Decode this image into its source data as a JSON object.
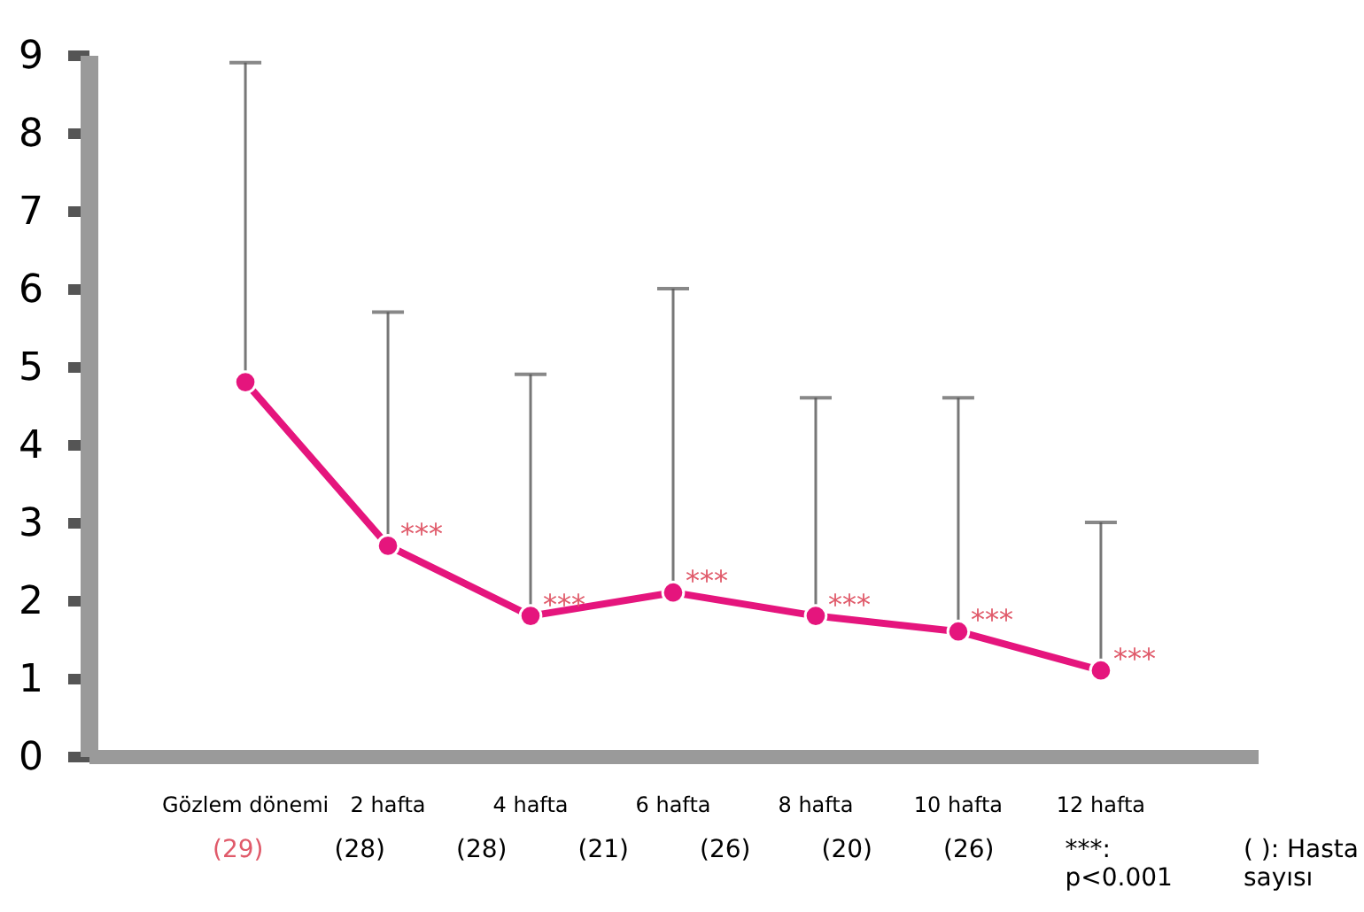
{
  "chart_data": {
    "type": "line",
    "categories": [
      "Gözlem dönemi",
      "2 hafta",
      "4 hafta",
      "6 hafta",
      "8 hafta",
      "10 hafta",
      "12 hafta"
    ],
    "series": [
      {
        "color": "#e5157d",
        "values": [
          4.8,
          2.7,
          1.8,
          2.1,
          1.8,
          1.6,
          1.1
        ],
        "errors": [
          [
            4.8,
            8.9
          ],
          [
            2.7,
            5.7
          ],
          [
            1.8,
            4.9
          ],
          [
            2.1,
            6.0
          ],
          [
            1.8,
            4.6
          ],
          [
            1.6,
            4.6
          ],
          [
            1.1,
            3.0
          ]
        ]
      }
    ],
    "ylim": [
      0,
      9
    ],
    "yticks": [
      0,
      1,
      2,
      3,
      4,
      5,
      6,
      7,
      8,
      9
    ],
    "marker": "circle",
    "line_style": "solid",
    "annotations": [
      "(29)",
      "(28)",
      "(28)",
      "(21)",
      "(26)",
      "(20)",
      "(26)",
      {
        "text": "***",
        "x": "2 hafta",
        "y": 2.7
      },
      {
        "text": "***",
        "x": "4 hafta",
        "y": 1.8
      },
      {
        "text": "***",
        "x": "6 hafta",
        "y": 2.1
      },
      {
        "text": "***",
        "x": "8 hafta",
        "y": 1.8
      },
      {
        "text": "***",
        "x": "10 hafta",
        "y": 1.6
      },
      {
        "text": "***",
        "x": "12 hafta",
        "y": 1.1
      },
      "***: p<0.001",
      "( ): Hasta sayısı"
    ]
  }
}
